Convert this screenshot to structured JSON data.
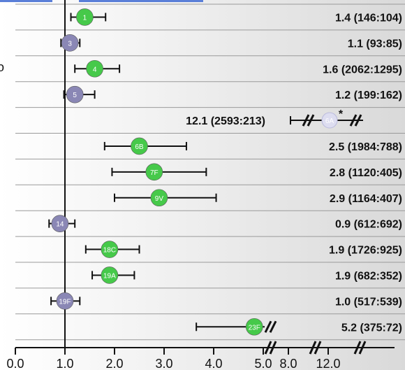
{
  "chart_data": {
    "type": "forest",
    "title": "",
    "xlabel": "",
    "ylabel": "",
    "reference_line": 1.0,
    "x_ticks": [
      "0.0",
      "1.0",
      "2.0",
      "3.0",
      "4.0",
      "5.0",
      "8.0",
      "12.0"
    ],
    "xlim": [
      0,
      5
    ],
    "axis_break_after": 5.0,
    "left_edge_glyph": "o",
    "colors": {
      "significant": "#46c94a",
      "nonsignificant": "#8a87b5",
      "faded": "#ddddf0"
    },
    "rows": [
      {
        "serotype": "1",
        "or": 1.4,
        "ci": [
          1.12,
          1.82
        ],
        "label": "1.4 (146:104)",
        "significant": true
      },
      {
        "serotype": "3",
        "or": 1.1,
        "ci": [
          0.92,
          1.3
        ],
        "label": "1.1 (93:85)",
        "significant": false
      },
      {
        "serotype": "4",
        "or": 1.6,
        "ci": [
          1.2,
          2.1
        ],
        "label": "1.6 (2062:1295)",
        "significant": true
      },
      {
        "serotype": "5",
        "or": 1.2,
        "ci": [
          0.98,
          1.6
        ],
        "label": "1.2 (199:162)",
        "significant": false
      },
      {
        "serotype": "6A",
        "or": 12.1,
        "ci": [
          8.5,
          17.0
        ],
        "label": "12.1 (2593:213)",
        "significant": true,
        "note": "*",
        "broken": true
      },
      {
        "serotype": "6B",
        "or": 2.5,
        "ci": [
          1.8,
          3.45
        ],
        "label": "2.5 (1984:788)",
        "significant": true
      },
      {
        "serotype": "7F",
        "or": 2.8,
        "ci": [
          1.95,
          3.85
        ],
        "label": "2.8 (1120:405)",
        "significant": true
      },
      {
        "serotype": "9V",
        "or": 2.9,
        "ci": [
          2.0,
          4.05
        ],
        "label": "2.9 (1164:407)",
        "significant": true
      },
      {
        "serotype": "14",
        "or": 0.9,
        "ci": [
          0.68,
          1.2
        ],
        "label": "0.9 (612:692)",
        "significant": false
      },
      {
        "serotype": "18C",
        "or": 1.9,
        "ci": [
          1.42,
          2.5
        ],
        "label": "1.9 (1726:925)",
        "significant": true
      },
      {
        "serotype": "19A",
        "or": 1.9,
        "ci": [
          1.55,
          2.4
        ],
        "label": "1.9 (682:352)",
        "significant": true
      },
      {
        "serotype": "19F",
        "or": 1.0,
        "ci": [
          0.72,
          1.3
        ],
        "label": "1.0 (517:539)",
        "significant": false
      },
      {
        "serotype": "23F",
        "or": 5.2,
        "ci": [
          3.65,
          5.0
        ],
        "label": "5.2 (375:72)",
        "significant": true,
        "broken": true
      }
    ]
  }
}
